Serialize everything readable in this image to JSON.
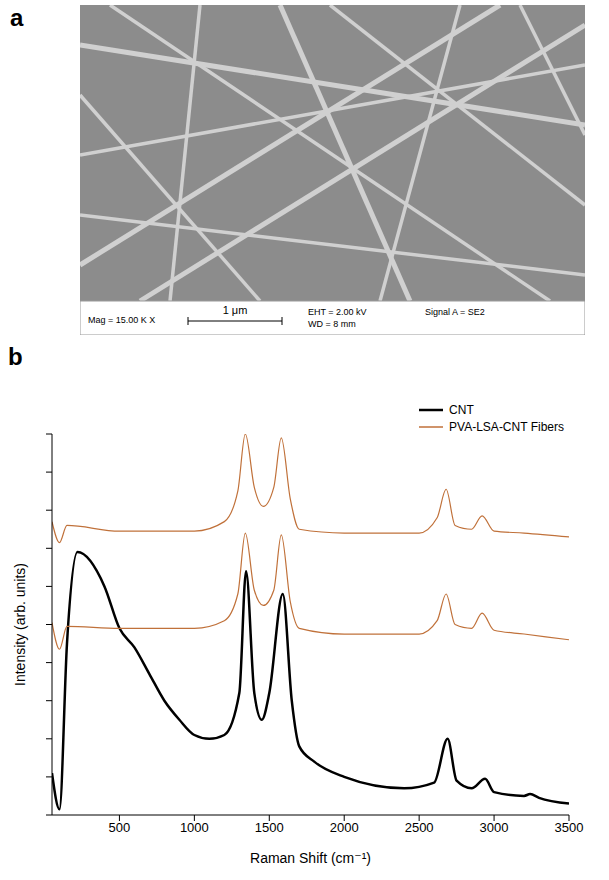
{
  "panel_labels": [
    "a",
    "b"
  ],
  "sem_image": {
    "mag": "Mag = 15.00 K X",
    "scale_bar": "1 μm",
    "eht": "EHT = 2.00 kV",
    "wd": "WD = 8 mm",
    "signal": "Signal A = SE2"
  },
  "chart_data": {
    "type": "line",
    "xlabel": "Raman Shift (cm⁻¹)",
    "ylabel": "Intensity (arb. units)",
    "xlim": [
      50,
      3500
    ],
    "xticks": [
      500,
      1000,
      1500,
      2000,
      2500,
      3000,
      3500
    ],
    "ylim": [
      0,
      10
    ],
    "yticks": [
      0,
      1,
      2,
      3,
      4,
      5,
      6,
      7,
      8,
      9,
      10
    ],
    "tick_labels": "x",
    "legend": "upper right",
    "series": [
      {
        "name": "CNT",
        "color": "#000000",
        "x": [
          50,
          100,
          150,
          220,
          400,
          500,
          600,
          700,
          800,
          900,
          1000,
          1100,
          1200,
          1300,
          1345,
          1400,
          1450,
          1500,
          1590,
          1650,
          1700,
          1800,
          2000,
          2400,
          2600,
          2690,
          2750,
          2850,
          2940,
          3000,
          3200,
          3240,
          3300,
          3500
        ],
        "values": [
          1.1,
          0.15,
          4.5,
          6.9,
          6.0,
          4.9,
          4.4,
          3.7,
          3.0,
          2.5,
          2.1,
          2.0,
          2.1,
          3.2,
          6.4,
          3.2,
          2.5,
          3.2,
          5.8,
          3.0,
          1.8,
          1.4,
          1.0,
          0.7,
          0.85,
          2.0,
          0.9,
          0.7,
          0.95,
          0.6,
          0.5,
          0.55,
          0.45,
          0.3
        ]
      },
      {
        "name": "PVA-LSA-CNT Fibers",
        "color": "#c0713a",
        "x": [
          50,
          100,
          150,
          500,
          1000,
          1200,
          1290,
          1340,
          1400,
          1460,
          1530,
          1580,
          1640,
          1700,
          2000,
          2500,
          2620,
          2680,
          2740,
          2850,
          2920,
          3000,
          3200,
          3500
        ],
        "values": [
          5.05,
          4.35,
          4.95,
          4.9,
          4.9,
          5.1,
          5.8,
          7.4,
          5.9,
          5.5,
          5.9,
          7.35,
          5.6,
          4.9,
          4.75,
          4.75,
          5.1,
          5.8,
          5.0,
          4.9,
          5.3,
          4.85,
          4.75,
          4.6
        ]
      },
      {
        "name": "PVA-LSA-CNT Fibers",
        "color": "#c0713a",
        "x": [
          50,
          100,
          150,
          500,
          1000,
          1200,
          1290,
          1340,
          1400,
          1460,
          1530,
          1580,
          1640,
          1700,
          2000,
          2500,
          2620,
          2680,
          2740,
          2850,
          2920,
          3000,
          3200,
          3500
        ],
        "values": [
          7.7,
          7.15,
          7.6,
          7.45,
          7.45,
          7.7,
          8.5,
          10.0,
          8.6,
          8.1,
          8.6,
          9.9,
          8.3,
          7.5,
          7.4,
          7.4,
          7.8,
          8.55,
          7.6,
          7.5,
          7.85,
          7.45,
          7.4,
          7.3
        ]
      }
    ]
  }
}
